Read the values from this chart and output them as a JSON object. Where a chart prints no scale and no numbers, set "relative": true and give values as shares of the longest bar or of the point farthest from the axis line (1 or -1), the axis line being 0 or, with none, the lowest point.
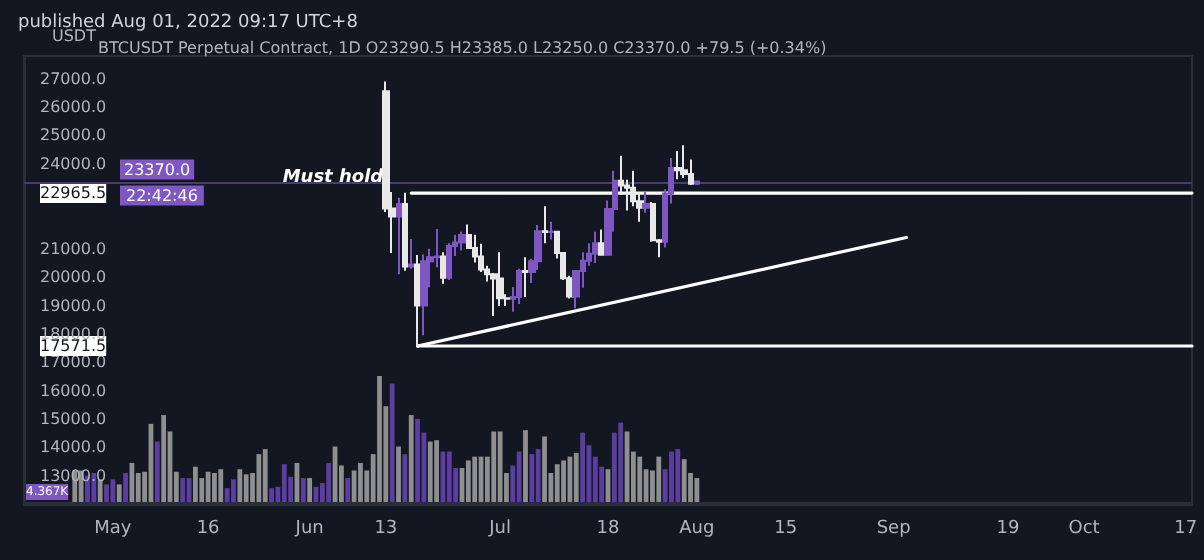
{
  "chart_data": [
    {
      "type": "candlestick",
      "title": "published Aug 01, 2022 09:17 UTC+8",
      "subtitle": "BTCUSDT Perpetual Contract, 1D O23290.5 H23385.0 L23250.0 C23370.0 +79.5 (+0.34%)",
      "ylabel": "USDT",
      "x": [
        "2022-06-13",
        "2022-06-14",
        "2022-06-15",
        "2022-06-16",
        "2022-06-17",
        "2022-06-18",
        "2022-06-19",
        "2022-06-20",
        "2022-06-21",
        "2022-06-22",
        "2022-06-23",
        "2022-06-24",
        "2022-06-25",
        "2022-06-26",
        "2022-06-27",
        "2022-06-28",
        "2022-06-29",
        "2022-06-30",
        "2022-07-01",
        "2022-07-02",
        "2022-07-03",
        "2022-07-04",
        "2022-07-05",
        "2022-07-06",
        "2022-07-07",
        "2022-07-08",
        "2022-07-09",
        "2022-07-10",
        "2022-07-11",
        "2022-07-12",
        "2022-07-13",
        "2022-07-14",
        "2022-07-15",
        "2022-07-16",
        "2022-07-17",
        "2022-07-18",
        "2022-07-19",
        "2022-07-20",
        "2022-07-21",
        "2022-07-22",
        "2022-07-23",
        "2022-07-24",
        "2022-07-25",
        "2022-07-26",
        "2022-07-27",
        "2022-07-28",
        "2022-07-29",
        "2022-07-30",
        "2022-07-31",
        "2022-08-01"
      ],
      "ohlc": [
        [
          26560,
          26900,
          22300,
          22420
        ],
        [
          22420,
          23000,
          20850,
          22140
        ],
        [
          22140,
          22800,
          20100,
          22580
        ],
        [
          22580,
          22980,
          20230,
          20380
        ],
        [
          20380,
          21350,
          20300,
          20450
        ],
        [
          20450,
          20780,
          17571.5,
          19000
        ],
        [
          19000,
          20800,
          17950,
          20560
        ],
        [
          20560,
          21000,
          19640,
          20700
        ],
        [
          20700,
          21700,
          20350,
          20730
        ],
        [
          20730,
          20880,
          19770,
          19980
        ],
        [
          19980,
          21200,
          19900,
          21100
        ],
        [
          21100,
          21500,
          20750,
          21220
        ],
        [
          21220,
          21600,
          20940,
          21490
        ],
        [
          21490,
          21860,
          21000,
          21030
        ],
        [
          21030,
          21500,
          20520,
          20730
        ],
        [
          20730,
          21180,
          20180,
          20270
        ],
        [
          20270,
          20400,
          19850,
          20100
        ],
        [
          20100,
          20150,
          18630,
          19950
        ],
        [
          19950,
          20880,
          18980,
          19260
        ],
        [
          19260,
          19400,
          18980,
          19240
        ],
        [
          19240,
          19650,
          18780,
          19300
        ],
        [
          19300,
          20300,
          19050,
          20220
        ],
        [
          20220,
          20700,
          19300,
          20180
        ],
        [
          20180,
          20650,
          19790,
          20560
        ],
        [
          20560,
          21840,
          20250,
          21620
        ],
        [
          21620,
          22500,
          21200,
          21590
        ],
        [
          21590,
          21950,
          21330,
          21600
        ],
        [
          21600,
          21600,
          20660,
          20850
        ],
        [
          20850,
          20860,
          19900,
          19960
        ],
        [
          19960,
          20050,
          19250,
          19320
        ],
        [
          19320,
          20250,
          18900,
          20220
        ],
        [
          20220,
          20880,
          19630,
          20580
        ],
        [
          20580,
          21200,
          20400,
          20830
        ],
        [
          20830,
          21600,
          20500,
          21200
        ],
        [
          21200,
          21680,
          20780,
          20790
        ],
        [
          20790,
          22700,
          20780,
          22400
        ],
        [
          22400,
          23750,
          21600,
          23400
        ],
        [
          23400,
          24280,
          22900,
          23230
        ],
        [
          23230,
          23440,
          22350,
          23150
        ],
        [
          23150,
          23750,
          22500,
          22680
        ],
        [
          22680,
          23000,
          21950,
          22450
        ],
        [
          22450,
          23000,
          22270,
          22580
        ],
        [
          22580,
          22650,
          21250,
          21300
        ],
        [
          21300,
          21350,
          20700,
          21250
        ],
        [
          21250,
          23100,
          21050,
          22950
        ],
        [
          22950,
          24200,
          22600,
          23850
        ],
        [
          23850,
          24450,
          23450,
          23770
        ],
        [
          23770,
          24650,
          23500,
          23640
        ],
        [
          23640,
          24150,
          23250,
          23290.5
        ],
        [
          23290.5,
          23385,
          23250,
          23370
        ]
      ],
      "colors": [
        "#e8e8e8",
        "#e8e8e8",
        "#7e57c2",
        "#e8e8e8",
        "#7e57c2",
        "#e8e8e8",
        "#7e57c2",
        "#7e57c2",
        "#7e57c2",
        "#e8e8e8",
        "#7e57c2",
        "#7e57c2",
        "#7e57c2",
        "#e8e8e8",
        "#e8e8e8",
        "#e8e8e8",
        "#e8e8e8",
        "#e8e8e8",
        "#e8e8e8",
        "#e8e8e8",
        "#7e57c2",
        "#7e57c2",
        "#e8e8e8",
        "#7e57c2",
        "#7e57c2",
        "#e8e8e8",
        "#7e57c2",
        "#e8e8e8",
        "#e8e8e8",
        "#e8e8e8",
        "#7e57c2",
        "#7e57c2",
        "#7e57c2",
        "#7e57c2",
        "#e8e8e8",
        "#7e57c2",
        "#7e57c2",
        "#e8e8e8",
        "#e8e8e8",
        "#e8e8e8",
        "#e8e8e8",
        "#7e57c2",
        "#e8e8e8",
        "#e8e8e8",
        "#7e57c2",
        "#7e57c2",
        "#e8e8e8",
        "#e8e8e8",
        "#e8e8e8",
        "#7e57c2"
      ],
      "series": [
        {
          "type": "line",
          "color": "#ffffff",
          "x": [
            "2022-06-17",
            "2022-10-18"
          ],
          "values": [
            22965.5,
            22965.5
          ]
        },
        {
          "type": "line",
          "color": "#ffffff",
          "x": [
            "2022-06-18",
            "2022-10-18"
          ],
          "values": [
            17571.5,
            17571.5
          ]
        },
        {
          "type": "line",
          "color": "#ffffff",
          "x": [
            "2022-06-18",
            "2022-09-03"
          ],
          "values": [
            17571.5,
            21400
          ]
        }
      ],
      "ref_lines": [
        {
          "axis": "y",
          "value": 23370,
          "label": "23370.0",
          "color": "#4a3b78"
        }
      ],
      "annotations": [
        {
          "text": "Must hold",
          "x": "2022-06-17",
          "y": 22965.5
        },
        "22:42:46"
      ],
      "marker": "none",
      "grid": false,
      "xlim": [
        "2022-04-17",
        "2022-10-18"
      ],
      "ylim": [
        12000,
        27800
      ],
      "xticks": [
        {
          "value": "2022-05-01",
          "label": "May"
        },
        {
          "value": "2022-05-16",
          "label": "16"
        },
        {
          "value": "2022-06-01",
          "label": "Jun"
        },
        {
          "value": "2022-06-13",
          "label": "13"
        },
        {
          "value": "2022-07-01",
          "label": "Jul"
        },
        {
          "value": "2022-07-18",
          "label": "18"
        },
        {
          "value": "2022-08-01",
          "label": "Aug"
        },
        {
          "value": "2022-08-15",
          "label": "15"
        },
        {
          "value": "2022-09-01",
          "label": "Sep"
        },
        {
          "value": "2022-09-19",
          "label": "19"
        },
        {
          "value": "2022-10-01",
          "label": "Oct"
        },
        {
          "value": "2022-10-17",
          "label": "17"
        }
      ],
      "yticks": [
        {
          "value": 13000,
          "label": "13000.0"
        },
        {
          "value": 14000,
          "label": "14000.0"
        },
        {
          "value": 15000,
          "label": "15000.0"
        },
        {
          "value": 16000,
          "label": "16000.0"
        },
        {
          "value": 17000,
          "label": "17000.0"
        },
        17571.5,
        {
          "value": 18000,
          "label": "18000.0"
        },
        {
          "value": 19000,
          "label": "19000.0"
        },
        {
          "value": 20000,
          "label": "20000.0"
        },
        {
          "value": 21000,
          "label": "21000.0"
        },
        22965.5,
        {
          "value": 24000,
          "label": "24000.0"
        },
        {
          "value": 25000,
          "label": "25000.0"
        },
        {
          "value": 26000,
          "label": "26000.0"
        },
        {
          "value": 27000,
          "label": "27000.0"
        }
      ]
    },
    {
      "type": "bar",
      "relative": true,
      "xlim": [
        "2022-04-17",
        "2022-10-18"
      ],
      "annotations": [
        "4.367K"
      ],
      "x": [
        "2022-04-25",
        "2022-04-26",
        "2022-04-27",
        "2022-04-28",
        "2022-04-29",
        "2022-04-30",
        "2022-05-01",
        "2022-05-02",
        "2022-05-03",
        "2022-05-04",
        "2022-05-05",
        "2022-05-06",
        "2022-05-07",
        "2022-05-08",
        "2022-05-09",
        "2022-05-10",
        "2022-05-11",
        "2022-05-12",
        "2022-05-13",
        "2022-05-14",
        "2022-05-15",
        "2022-05-16",
        "2022-05-17",
        "2022-05-18",
        "2022-05-19",
        "2022-05-20",
        "2022-05-21",
        "2022-05-22",
        "2022-05-23",
        "2022-05-24",
        "2022-05-25",
        "2022-05-26",
        "2022-05-27",
        "2022-05-28",
        "2022-05-29",
        "2022-05-30",
        "2022-05-31",
        "2022-06-01",
        "2022-06-02",
        "2022-06-03",
        "2022-06-04",
        "2022-06-05",
        "2022-06-06",
        "2022-06-07",
        "2022-06-08",
        "2022-06-09",
        "2022-06-10",
        "2022-06-11",
        "2022-06-12",
        "2022-06-13",
        "2022-06-14",
        "2022-06-15",
        "2022-06-16",
        "2022-06-17",
        "2022-06-18",
        "2022-06-19",
        "2022-06-20",
        "2022-06-21",
        "2022-06-22",
        "2022-06-23",
        "2022-06-24",
        "2022-06-25",
        "2022-06-26",
        "2022-06-27",
        "2022-06-28",
        "2022-06-29",
        "2022-06-30",
        "2022-07-01",
        "2022-07-02",
        "2022-07-03",
        "2022-07-04",
        "2022-07-05",
        "2022-07-06",
        "2022-07-07",
        "2022-07-08",
        "2022-07-09",
        "2022-07-10",
        "2022-07-11",
        "2022-07-12",
        "2022-07-13",
        "2022-07-14",
        "2022-07-15",
        "2022-07-16",
        "2022-07-17",
        "2022-07-18",
        "2022-07-19",
        "2022-07-20",
        "2022-07-21",
        "2022-07-22",
        "2022-07-23",
        "2022-07-24",
        "2022-07-25",
        "2022-07-26",
        "2022-07-27",
        "2022-07-28",
        "2022-07-29",
        "2022-07-30",
        "2022-07-31",
        "2022-08-01"
      ],
      "values": [
        0.25,
        0.25,
        0.21,
        0.23,
        0.18,
        0.14,
        0.18,
        0.14,
        0.23,
        0.31,
        0.23,
        0.24,
        0.62,
        0.48,
        0.69,
        0.56,
        0.24,
        0.19,
        0.19,
        0.28,
        0.19,
        0.24,
        0.23,
        0.26,
        0.11,
        0.18,
        0.26,
        0.22,
        0.23,
        0.38,
        0.42,
        0.11,
        0.12,
        0.3,
        0.2,
        0.31,
        0.19,
        0.19,
        0.12,
        0.15,
        0.31,
        0.44,
        0.29,
        0.19,
        0.25,
        0.31,
        0.25,
        0.38,
        1.0,
        0.76,
        0.94,
        0.44,
        0.38,
        0.69,
        0.66,
        0.55,
        0.48,
        0.49,
        0.4,
        0.4,
        0.27,
        0.27,
        0.33,
        0.36,
        0.36,
        0.36,
        0.56,
        0.56,
        0.23,
        0.29,
        0.4,
        0.57,
        0.38,
        0.42,
        0.52,
        0.23,
        0.3,
        0.33,
        0.36,
        0.39,
        0.55,
        0.45,
        0.36,
        0.28,
        0.26,
        0.55,
        0.63,
        0.56,
        0.4,
        0.36,
        0.26,
        0.25,
        0.36,
        0.26,
        0.4,
        0.42,
        0.34,
        0.23,
        0.19
      ],
      "colors": [
        "#8f8f8f",
        "#8f8f8f",
        "#5b3fa0",
        "#5b3fa0",
        "#8f8f8f",
        "#5b3fa0",
        "#5b3fa0",
        "#8f8f8f",
        "#5b3fa0",
        "#8f8f8f",
        "#8f8f8f",
        "#8f8f8f",
        "#8f8f8f",
        "#5b3fa0",
        "#8f8f8f",
        "#8f8f8f",
        "#8f8f8f",
        "#5b3fa0",
        "#5b3fa0",
        "#8f8f8f",
        "#8f8f8f",
        "#8f8f8f",
        "#8f8f8f",
        "#8f8f8f",
        "#5b3fa0",
        "#5b3fa0",
        "#8f8f8f",
        "#8f8f8f",
        "#8f8f8f",
        "#8f8f8f",
        "#8f8f8f",
        "#5b3fa0",
        "#5b3fa0",
        "#5b3fa0",
        "#5b3fa0",
        "#8f8f8f",
        "#5b3fa0",
        "#8f8f8f",
        "#5b3fa0",
        "#5b3fa0",
        "#5b3fa0",
        "#8f8f8f",
        "#8f8f8f",
        "#5b3fa0",
        "#8f8f8f",
        "#8f8f8f",
        "#8f8f8f",
        "#8f8f8f",
        "#8f8f8f",
        "#8f8f8f",
        "#5b3fa0",
        "#8f8f8f",
        "#5b3fa0",
        "#8f8f8f",
        "#5b3fa0",
        "#5b3fa0",
        "#8f8f8f",
        "#8f8f8f",
        "#5b3fa0",
        "#5b3fa0",
        "#5b3fa0",
        "#8f8f8f",
        "#8f8f8f",
        "#8f8f8f",
        "#8f8f8f",
        "#8f8f8f",
        "#8f8f8f",
        "#8f8f8f",
        "#8f8f8f",
        "#5b3fa0",
        "#5b3fa0",
        "#8f8f8f",
        "#5b3fa0",
        "#5b3fa0",
        "#8f8f8f",
        "#8f8f8f",
        "#8f8f8f",
        "#8f8f8f",
        "#8f8f8f",
        "#8f8f8f",
        "#5b3fa0",
        "#5b3fa0",
        "#5b3fa0",
        "#5b3fa0",
        "#8f8f8f",
        "#5b3fa0",
        "#5b3fa0",
        "#8f8f8f",
        "#8f8f8f",
        "#8f8f8f",
        "#8f8f8f",
        "#8f8f8f",
        "#8f8f8f",
        "#5b3fa0",
        "#5b3fa0",
        "#5b3fa0",
        "#8f8f8f",
        "#8f8f8f",
        "#8f8f8f"
      ]
    }
  ]
}
